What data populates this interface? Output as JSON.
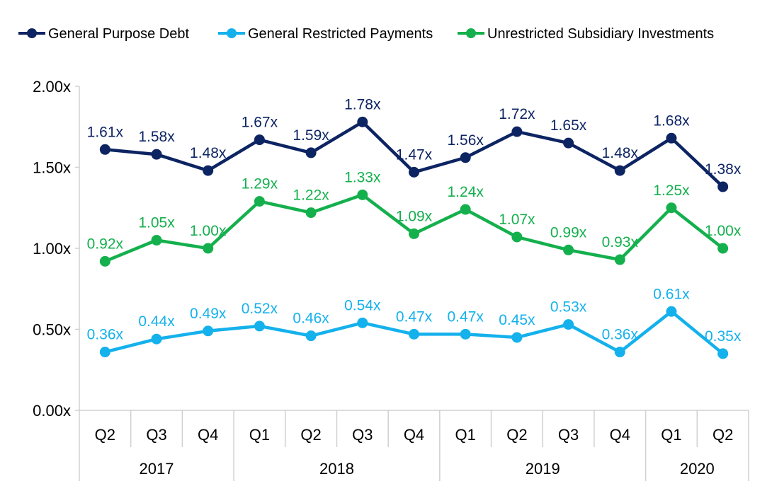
{
  "chart_data": {
    "type": "line",
    "categories": [
      "Q2",
      "Q3",
      "Q4",
      "Q1",
      "Q2",
      "Q3",
      "Q4",
      "Q1",
      "Q2",
      "Q3",
      "Q4",
      "Q1",
      "Q2"
    ],
    "year_groups": [
      {
        "label": "2017",
        "span": 3
      },
      {
        "label": "2018",
        "span": 4
      },
      {
        "label": "2019",
        "span": 4
      },
      {
        "label": "2020",
        "span": 2
      }
    ],
    "series": [
      {
        "name": "General Purpose Debt",
        "color": "#0d2463",
        "values": [
          1.61,
          1.58,
          1.48,
          1.67,
          1.59,
          1.78,
          1.47,
          1.56,
          1.72,
          1.65,
          1.48,
          1.68,
          1.38
        ],
        "labels": [
          "1.61x",
          "1.58x",
          "1.48x",
          "1.67x",
          "1.59x",
          "1.78x",
          "1.47x",
          "1.56x",
          "1.72x",
          "1.65x",
          "1.48x",
          "1.68x",
          "1.38x"
        ]
      },
      {
        "name": "General Restricted Payments",
        "color": "#14b1ec",
        "values": [
          0.36,
          0.44,
          0.49,
          0.52,
          0.46,
          0.54,
          0.47,
          0.47,
          0.45,
          0.53,
          0.36,
          0.61,
          0.35
        ],
        "labels": [
          "0.36x",
          "0.44x",
          "0.49x",
          "0.52x",
          "0.46x",
          "0.54x",
          "0.47x",
          "0.47x",
          "0.45x",
          "0.53x",
          "0.36x",
          "0.61x",
          "0.35x"
        ]
      },
      {
        "name": "Unrestricted Subsidiary Investments",
        "color": "#14b04d",
        "values": [
          0.92,
          1.05,
          1.0,
          1.29,
          1.22,
          1.33,
          1.09,
          1.24,
          1.07,
          0.99,
          0.93,
          1.25,
          1.0
        ],
        "labels": [
          "0.92x",
          "1.05x",
          "1.00x",
          "1.29x",
          "1.22x",
          "1.33x",
          "1.09x",
          "1.24x",
          "1.07x",
          "0.99x",
          "0.93x",
          "1.25x",
          "1.00x"
        ]
      }
    ],
    "y_ticks": [
      0,
      0.5,
      1.0,
      1.5,
      2.0
    ],
    "y_tick_labels": [
      "0.00x",
      "0.50x",
      "1.00x",
      "1.50x",
      "2.00x"
    ],
    "ylim": [
      0,
      2.0
    ],
    "grid": false,
    "legend_position": "top"
  }
}
